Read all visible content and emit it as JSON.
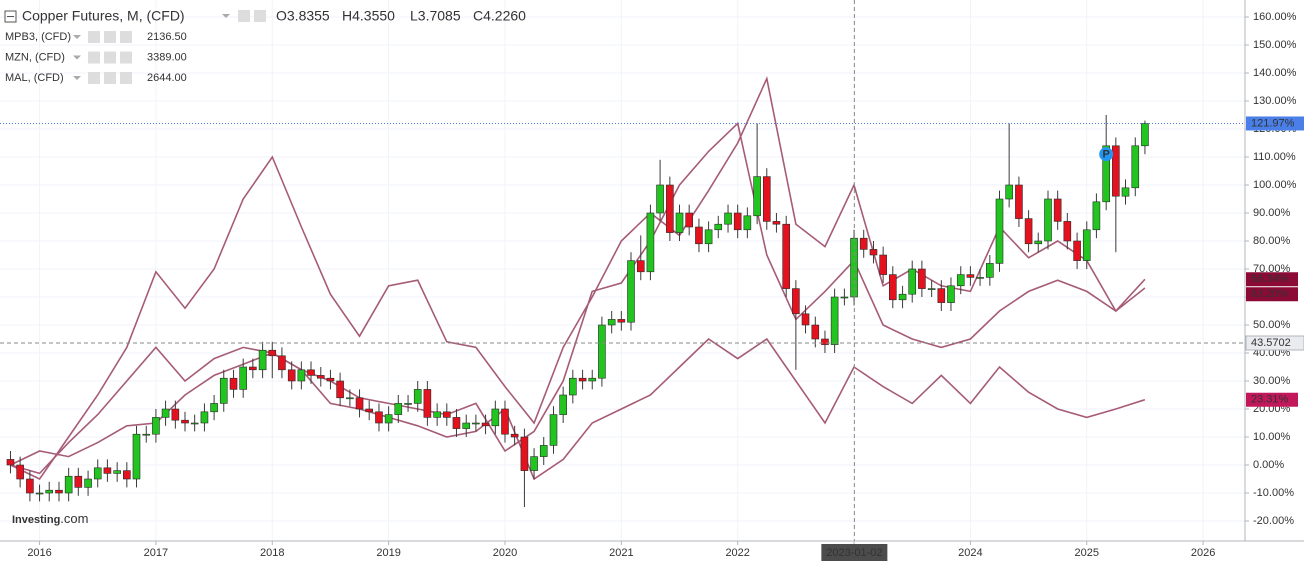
{
  "header": {
    "title": "Copper Futures, M, (CFD)",
    "ohlc": [
      "O3.8355",
      "H4.3550",
      "L3.7085",
      "C4.2260"
    ]
  },
  "chart_data": {
    "type": "candlestick",
    "x": [
      2015.75,
      2015.833,
      2015.917,
      2016,
      2016.083,
      2016.167,
      2016.25,
      2016.333,
      2016.417,
      2016.5,
      2016.583,
      2016.667,
      2016.75,
      2016.833,
      2016.917,
      2017,
      2017.083,
      2017.167,
      2017.25,
      2017.333,
      2017.417,
      2017.5,
      2017.583,
      2017.667,
      2017.75,
      2017.833,
      2017.917,
      2018,
      2018.083,
      2018.167,
      2018.25,
      2018.333,
      2018.417,
      2018.5,
      2018.583,
      2018.667,
      2018.75,
      2018.833,
      2018.917,
      2019,
      2019.083,
      2019.167,
      2019.25,
      2019.333,
      2019.417,
      2019.5,
      2019.583,
      2019.667,
      2019.75,
      2019.833,
      2019.917,
      2020,
      2020.083,
      2020.167,
      2020.25,
      2020.333,
      2020.417,
      2020.5,
      2020.583,
      2020.667,
      2020.75,
      2020.833,
      2020.917,
      2021,
      2021.083,
      2021.167,
      2021.25,
      2021.333,
      2021.417,
      2021.5,
      2021.583,
      2021.667,
      2021.75,
      2021.833,
      2021.917,
      2022,
      2022.083,
      2022.167,
      2022.25,
      2022.333,
      2022.417,
      2022.5,
      2022.583,
      2022.667,
      2022.75,
      2022.833,
      2022.917,
      2023,
      2023.083,
      2023.167,
      2023.25,
      2023.333,
      2023.417,
      2023.5,
      2023.583,
      2023.667,
      2023.75,
      2023.833,
      2023.917,
      2024,
      2024.083,
      2024.167,
      2024.25,
      2024.333,
      2024.417,
      2024.5,
      2024.583,
      2024.667,
      2024.75,
      2024.833,
      2024.917,
      2025,
      2025.083,
      2025.167,
      2025.25,
      2025.333,
      2025.417,
      2025.5
    ],
    "open": [
      2,
      0,
      -5,
      -10,
      -10,
      -9,
      -10,
      -4,
      -8,
      -5,
      -1,
      -3,
      -2,
      -5,
      11,
      11,
      17,
      20,
      16,
      15,
      15,
      19,
      22,
      31,
      27,
      35,
      34,
      41,
      39,
      34,
      30,
      34,
      32,
      31,
      30,
      24,
      24,
      20,
      19,
      15,
      18,
      22,
      22,
      27,
      17,
      19,
      17,
      13,
      15,
      15,
      14,
      20,
      11,
      10,
      -2,
      3,
      7,
      18,
      25,
      31,
      30,
      31,
      50,
      52,
      51,
      73,
      69,
      90,
      100,
      83,
      90,
      85,
      79,
      84,
      86,
      90,
      84,
      89,
      103,
      87,
      86,
      63,
      54,
      50,
      45,
      43,
      60,
      60,
      81,
      77,
      75,
      68,
      59,
      61,
      70,
      63,
      63,
      58,
      64,
      68,
      67,
      67,
      72,
      95,
      100,
      88,
      79,
      80,
      95,
      87,
      80,
      73,
      84,
      94,
      114,
      96,
      99,
      114
    ],
    "high": [
      5,
      3,
      -2,
      -7,
      -6,
      -6,
      -1,
      -1,
      -2,
      2,
      2,
      1,
      1,
      14,
      14,
      20,
      23,
      23,
      19,
      18,
      22,
      25,
      34,
      34,
      38,
      38,
      44,
      44,
      42,
      37,
      37,
      37,
      35,
      34,
      33,
      27,
      27,
      23,
      22,
      21,
      25,
      25,
      30,
      30,
      22,
      22,
      20,
      18,
      18,
      18,
      23,
      23,
      14,
      13,
      6,
      10,
      21,
      28,
      34,
      34,
      34,
      53,
      55,
      55,
      76,
      82,
      93,
      109,
      103,
      93,
      93,
      88,
      87,
      89,
      93,
      93,
      92,
      122,
      106,
      90,
      89,
      66,
      57,
      53,
      48,
      63,
      63,
      84,
      84,
      80,
      78,
      71,
      64,
      73,
      73,
      66,
      66,
      67,
      71,
      71,
      70,
      75,
      98,
      122,
      103,
      91,
      83,
      98,
      98,
      90,
      83,
      87,
      97,
      125,
      117,
      102,
      117,
      123
    ],
    "low": [
      -3,
      -8,
      -13,
      -13,
      -13,
      -13,
      -13,
      -11,
      -11,
      -8,
      -6,
      -6,
      -8,
      -8,
      8,
      8,
      14,
      13,
      12,
      12,
      12,
      16,
      19,
      24,
      24,
      31,
      31,
      31,
      31,
      27,
      27,
      29,
      28,
      27,
      21,
      21,
      17,
      16,
      12,
      12,
      15,
      19,
      19,
      14,
      14,
      14,
      10,
      10,
      12,
      11,
      11,
      8,
      7,
      -15,
      -5,
      0,
      4,
      15,
      22,
      27,
      27,
      28,
      47,
      48,
      48,
      66,
      66,
      87,
      80,
      80,
      82,
      76,
      76,
      81,
      83,
      81,
      81,
      86,
      84,
      83,
      60,
      34,
      47,
      42,
      40,
      40,
      57,
      57,
      74,
      72,
      65,
      56,
      56,
      58,
      60,
      60,
      55,
      55,
      61,
      64,
      64,
      64,
      69,
      92,
      85,
      76,
      76,
      77,
      84,
      77,
      70,
      70,
      81,
      91,
      76,
      93,
      96,
      111
    ],
    "close": [
      0,
      -5,
      -10,
      -10,
      -9,
      -10,
      -4,
      -8,
      -5,
      -1,
      -3,
      -2,
      -5,
      11,
      11,
      17,
      20,
      16,
      15,
      15,
      19,
      22,
      31,
      27,
      35,
      34,
      41,
      39,
      34,
      30,
      34,
      32,
      31,
      30,
      24,
      24,
      20,
      19,
      15,
      18,
      22,
      22,
      27,
      17,
      19,
      17,
      13,
      15,
      15,
      14,
      20,
      11,
      10,
      -2,
      3,
      7,
      18,
      25,
      31,
      30,
      31,
      50,
      52,
      51,
      73,
      69,
      90,
      100,
      83,
      90,
      85,
      79,
      84,
      86,
      90,
      84,
      89,
      103,
      87,
      86,
      63,
      54,
      50,
      45,
      43,
      60,
      60,
      81,
      77,
      75,
      68,
      59,
      61,
      70,
      63,
      63,
      58,
      64,
      68,
      67,
      67,
      72,
      95,
      100,
      88,
      79,
      80,
      95,
      87,
      80,
      73,
      84,
      94,
      114,
      96,
      99,
      114,
      121.97
    ],
    "close_labels": [
      null,
      null,
      null,
      null,
      null,
      null,
      null,
      null,
      null,
      null,
      null,
      null,
      null,
      null,
      null,
      null,
      null,
      null,
      null,
      null,
      null,
      null,
      null,
      null,
      null,
      null,
      null,
      null,
      null,
      null,
      null,
      null,
      null,
      null,
      null,
      null,
      null,
      null,
      null,
      null,
      null,
      null,
      null,
      null,
      null,
      null,
      null,
      null,
      null,
      null,
      null,
      null,
      null,
      null,
      null,
      null,
      null,
      null,
      null,
      null,
      null,
      null,
      null,
      null,
      null,
      null,
      null,
      null,
      null,
      null,
      null,
      null,
      null,
      null,
      null,
      null,
      null,
      null,
      null,
      null,
      null,
      null,
      null,
      null,
      null,
      null,
      null,
      null,
      null,
      null,
      null,
      null,
      null,
      null,
      null,
      null,
      null,
      null,
      null,
      null,
      null,
      null,
      null,
      null,
      null,
      null,
      null,
      null,
      null,
      null,
      null,
      null,
      null,
      null,
      null,
      null,
      null,
      "121.97%"
    ],
    "up_color": "#22c41f",
    "down_color": "#e3121e",
    "last_color": "#4a7fe8",
    "comparison": [
      {
        "name": "MPB3, (CFD)",
        "price": "2136.50",
        "color": "#a65b76",
        "label_color": "#c2185b",
        "x": [
          2015.75,
          2016,
          2016.25,
          2016.5,
          2016.75,
          2017,
          2017.25,
          2017.5,
          2017.75,
          2018,
          2018.25,
          2018.5,
          2018.75,
          2019,
          2019.25,
          2019.5,
          2019.75,
          2020,
          2020.25,
          2020.5,
          2020.75,
          2021,
          2021.25,
          2021.5,
          2021.75,
          2022,
          2022.25,
          2022.5,
          2022.75,
          2023,
          2023.25,
          2023.5,
          2023.75,
          2024,
          2024.25,
          2024.5,
          2024.75,
          2025,
          2025.25,
          2025.5
        ],
        "values": [
          0,
          5,
          3,
          8,
          14,
          15,
          25,
          32,
          36,
          40,
          34,
          22,
          20,
          17,
          14,
          10,
          12,
          20,
          -5,
          2,
          15,
          20,
          25,
          35,
          45,
          38,
          45,
          30,
          15,
          35,
          28,
          22,
          32,
          22,
          35,
          26,
          20,
          17,
          20,
          23.31
        ],
        "value_labels": [
          null,
          null,
          null,
          null,
          null,
          null,
          null,
          null,
          null,
          null,
          null,
          null,
          null,
          null,
          null,
          null,
          null,
          null,
          null,
          null,
          null,
          null,
          null,
          null,
          null,
          null,
          null,
          null,
          null,
          null,
          null,
          null,
          null,
          null,
          null,
          null,
          null,
          null,
          null,
          "23.31%"
        ]
      },
      {
        "name": "MZN, (CFD)",
        "price": "3389.00",
        "color": "#a65b76",
        "label_color": "#8b0a36",
        "x": [
          2015.75,
          2016,
          2016.25,
          2016.5,
          2016.75,
          2017,
          2017.25,
          2017.5,
          2017.75,
          2018,
          2018.25,
          2018.5,
          2018.75,
          2019,
          2019.25,
          2019.5,
          2019.75,
          2020,
          2020.25,
          2020.5,
          2020.75,
          2021,
          2021.25,
          2021.5,
          2021.75,
          2022,
          2022.25,
          2022.5,
          2022.75,
          2023,
          2023.25,
          2023.5,
          2023.75,
          2024,
          2024.25,
          2024.5,
          2024.75,
          2025,
          2025.25,
          2025.5
        ],
        "values": [
          0,
          -5,
          10,
          25,
          42,
          69,
          56,
          70,
          95,
          110,
          85,
          61,
          46,
          64,
          66,
          44,
          42,
          28,
          15,
          42,
          60,
          80,
          90,
          82,
          98,
          115,
          138,
          86,
          78,
          100,
          64,
          70,
          64,
          62,
          85,
          74,
          80,
          73,
          55,
          66.34
        ],
        "value_labels": [
          null,
          null,
          null,
          null,
          null,
          null,
          null,
          null,
          null,
          null,
          null,
          null,
          null,
          null,
          null,
          null,
          null,
          null,
          null,
          null,
          null,
          null,
          null,
          null,
          null,
          null,
          null,
          null,
          null,
          null,
          null,
          null,
          null,
          null,
          null,
          null,
          null,
          null,
          null,
          "66.34%"
        ]
      },
      {
        "name": "MAL, (CFD)",
        "price": "2644.00",
        "color": "#a65b76",
        "label_color": "#8b0a36",
        "x": [
          2015.75,
          2016,
          2016.25,
          2016.5,
          2016.75,
          2017,
          2017.25,
          2017.5,
          2017.75,
          2018,
          2018.25,
          2018.5,
          2018.75,
          2019,
          2019.25,
          2019.5,
          2019.75,
          2020,
          2020.25,
          2020.5,
          2020.75,
          2021,
          2021.25,
          2021.5,
          2021.75,
          2022,
          2022.25,
          2022.5,
          2022.75,
          2023,
          2023.25,
          2023.5,
          2023.75,
          2024,
          2024.25,
          2024.5,
          2024.75,
          2025,
          2025.25,
          2025.5
        ],
        "values": [
          0,
          -3,
          8,
          18,
          30,
          42,
          30,
          38,
          42,
          40,
          34,
          30,
          24,
          22,
          20,
          18,
          22,
          5,
          12,
          30,
          62,
          65,
          80,
          100,
          112,
          122,
          75,
          52,
          62,
          73,
          50,
          45,
          42,
          45,
          55,
          62,
          66,
          62,
          55,
          63.2
        ],
        "value_labels": [
          null,
          null,
          null,
          null,
          null,
          null,
          null,
          null,
          null,
          null,
          null,
          null,
          null,
          null,
          null,
          null,
          null,
          null,
          null,
          null,
          null,
          null,
          null,
          null,
          null,
          null,
          null,
          null,
          null,
          null,
          null,
          null,
          null,
          null,
          null,
          null,
          null,
          null,
          null,
          "63.20%"
        ]
      }
    ],
    "xlim": [
      2015.66,
      2026.36
    ],
    "xticks": [
      2016,
      2017,
      2018,
      2019,
      2020,
      2021,
      2022,
      2023,
      2024,
      2025,
      2026
    ],
    "ylim": [
      -27.14,
      166.07
    ],
    "yticks": [
      {
        "value": 160,
        "label": "160.00%"
      },
      {
        "value": 150,
        "label": "150.00%"
      },
      {
        "value": 140,
        "label": "140.00%"
      },
      {
        "value": 130,
        "label": "130.00%"
      },
      {
        "value": 120,
        "label": "120.00%"
      },
      {
        "value": 110,
        "label": "110.00%"
      },
      {
        "value": 100,
        "label": "100.00%"
      },
      {
        "value": 90,
        "label": "90.00%"
      },
      {
        "value": 80,
        "label": "80.00%"
      },
      {
        "value": 70,
        "label": "70.00%"
      },
      {
        "value": 60,
        "label": "60.00%"
      },
      {
        "value": 50,
        "label": "50.00%"
      },
      {
        "value": 40,
        "label": "40.00%"
      },
      {
        "value": 30,
        "label": "30.00%"
      },
      {
        "value": 20,
        "label": "20.00%"
      },
      {
        "value": 10,
        "label": "10.00%"
      },
      {
        "value": 0,
        "label": "0.00%"
      },
      {
        "value": -10,
        "label": "-10.00%"
      },
      {
        "value": -20,
        "label": "-20.00%"
      }
    ],
    "grid": true,
    "crosshair": {
      "x": "2023-01-02",
      "y": 43.5702
    },
    "annotations": [
      {
        "text": "P",
        "x": 2025.167,
        "y": 111
      }
    ],
    "watermark": {
      "brand": "Investing",
      "suffix": ".com"
    }
  }
}
